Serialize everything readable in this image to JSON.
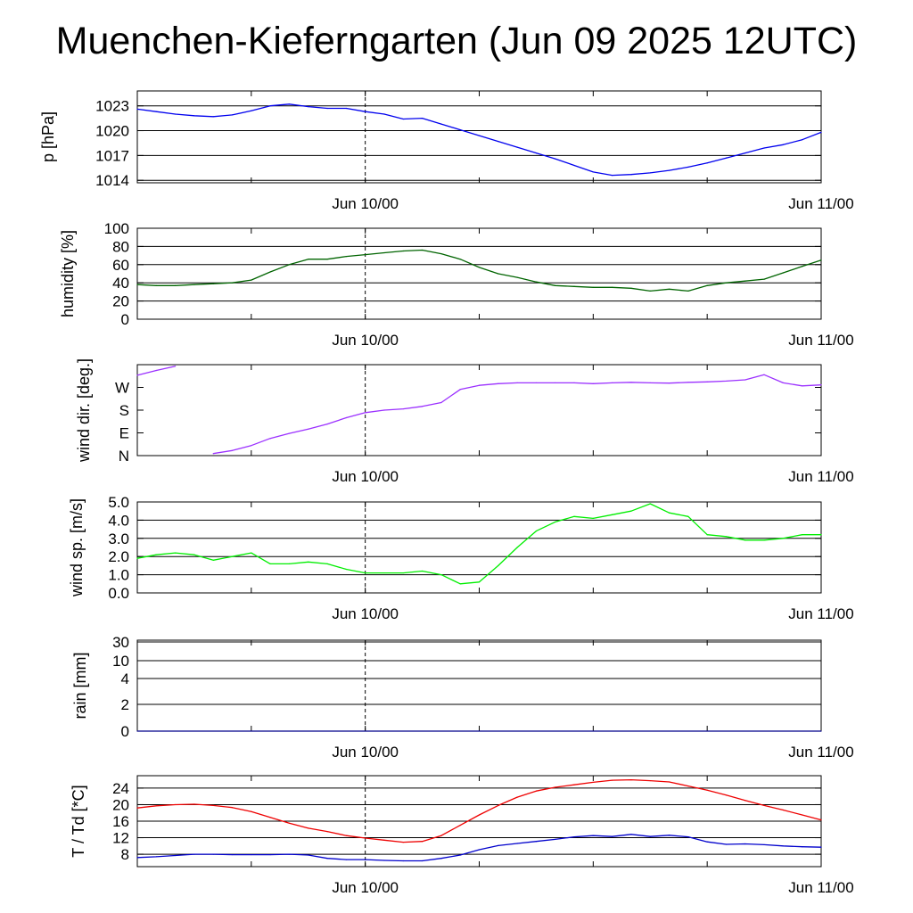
{
  "title": "Muenchen-Kieferngarten (Jun 09 2025 12UTC)",
  "chart_data": [
    {
      "type": "line",
      "ylabel": "p [hPa]",
      "x_tick_labels": [
        "Jun 10/00",
        "Jun 11/00"
      ],
      "x": [
        0,
        1,
        2,
        3,
        4,
        5,
        6,
        7,
        8,
        9,
        10,
        11,
        12,
        13,
        14,
        15,
        16,
        17,
        18,
        19,
        20,
        21,
        22,
        23,
        24,
        25,
        26,
        27,
        28,
        29,
        30,
        31,
        32,
        33,
        34,
        35,
        36
      ],
      "ylim": [
        1013.7,
        1024.8
      ],
      "yticks": [
        1014,
        1017,
        1020,
        1023
      ],
      "grid": true,
      "series": [
        {
          "color": "#0000ee",
          "values": [
            1022.6,
            1022.3,
            1022.0,
            1021.8,
            1021.7,
            1021.9,
            1022.4,
            1023.0,
            1023.2,
            1022.9,
            1022.7,
            1022.7,
            1022.3,
            1022.0,
            1021.4,
            1021.5,
            1020.8,
            1020.1,
            1019.4,
            1018.7,
            1018.0,
            1017.3,
            1016.6,
            1015.8,
            1015.0,
            1014.6,
            1014.7,
            1014.9,
            1015.2,
            1015.6,
            1016.1,
            1016.7,
            1017.3,
            1017.9,
            1018.3,
            1018.9,
            1019.8
          ]
        }
      ]
    },
    {
      "type": "line",
      "ylabel": "humidity [%]",
      "x_tick_labels": [
        "Jun 10/00",
        "Jun 11/00"
      ],
      "x": [
        0,
        1,
        2,
        3,
        4,
        5,
        6,
        7,
        8,
        9,
        10,
        11,
        12,
        13,
        14,
        15,
        16,
        17,
        18,
        19,
        20,
        21,
        22,
        23,
        24,
        25,
        26,
        27,
        28,
        29,
        30,
        31,
        32,
        33,
        34,
        35,
        36
      ],
      "ylim": [
        0,
        100
      ],
      "yticks": [
        0,
        20,
        40,
        60,
        80,
        100
      ],
      "grid": true,
      "series": [
        {
          "color": "#006400",
          "values": [
            38,
            37,
            37,
            38,
            39,
            40,
            43,
            52,
            60,
            66,
            66,
            69,
            71,
            73,
            75,
            76,
            72,
            66,
            57,
            50,
            46,
            41,
            37,
            36,
            35,
            35,
            34,
            31,
            33,
            31,
            37,
            40,
            42,
            44,
            51,
            58,
            65
          ]
        }
      ]
    },
    {
      "type": "line",
      "ylabel": "wind dir. [deg.]",
      "x_tick_labels": [
        "Jun 10/00",
        "Jun 11/00"
      ],
      "x": [
        0,
        1,
        2,
        3,
        4,
        5,
        6,
        7,
        8,
        9,
        10,
        11,
        12,
        13,
        14,
        15,
        16,
        17,
        18,
        19,
        20,
        21,
        22,
        23,
        24,
        25,
        26,
        27,
        28,
        29,
        30,
        31,
        32,
        33,
        34,
        35,
        36
      ],
      "ylim": [
        0,
        360
      ],
      "yticks": [
        0,
        90,
        180,
        270
      ],
      "ytick_labels": [
        "N",
        "E",
        "S",
        "W"
      ],
      "grid": false,
      "series": [
        {
          "color": "#9b30ff",
          "values": [
            318,
            337,
            354,
            null,
            8,
            20,
            40,
            68,
            88,
            105,
            125,
            150,
            170,
            180,
            185,
            195,
            210,
            262,
            278,
            285,
            288,
            288,
            288,
            288,
            285,
            288,
            290,
            288,
            287,
            290,
            292,
            295,
            300,
            320,
            288,
            276,
            280
          ]
        }
      ]
    },
    {
      "type": "line",
      "ylabel": "wind sp. [m/s]",
      "x_tick_labels": [
        "Jun 10/00",
        "Jun 11/00"
      ],
      "x": [
        0,
        1,
        2,
        3,
        4,
        5,
        6,
        7,
        8,
        9,
        10,
        11,
        12,
        13,
        14,
        15,
        16,
        17,
        18,
        19,
        20,
        21,
        22,
        23,
        24,
        25,
        26,
        27,
        28,
        29,
        30,
        31,
        32,
        33,
        34,
        35,
        36
      ],
      "ylim": [
        0,
        5
      ],
      "yticks": [
        0.0,
        1.0,
        2.0,
        3.0,
        4.0,
        5.0
      ],
      "grid": true,
      "series": [
        {
          "color": "#00ee00",
          "values": [
            1.9,
            2.1,
            2.2,
            2.1,
            1.8,
            2.0,
            2.2,
            1.6,
            1.6,
            1.7,
            1.6,
            1.3,
            1.1,
            1.1,
            1.1,
            1.2,
            1.0,
            0.5,
            0.6,
            1.5,
            2.5,
            3.4,
            3.9,
            4.2,
            4.1,
            4.3,
            4.5,
            4.9,
            4.4,
            4.2,
            3.2,
            3.1,
            2.9,
            2.9,
            3.0,
            3.2,
            3.2
          ]
        }
      ]
    },
    {
      "type": "line",
      "ylabel": "rain [mm]",
      "x_tick_labels": [
        "Jun 10/00",
        "Jun 11/00"
      ],
      "x": [
        0,
        36
      ],
      "ylim": [
        0,
        30
      ],
      "yticks": [
        0,
        2,
        4,
        10,
        30
      ],
      "grid": true,
      "series": [
        {
          "color": "#00008b",
          "values": [
            0,
            0
          ]
        }
      ]
    },
    {
      "type": "line",
      "ylabel": "T / Td [*C]",
      "x_tick_labels": [
        "Jun 10/00",
        "Jun 11/00"
      ],
      "x": [
        0,
        1,
        2,
        3,
        4,
        5,
        6,
        7,
        8,
        9,
        10,
        11,
        12,
        13,
        14,
        15,
        16,
        17,
        18,
        19,
        20,
        21,
        22,
        23,
        24,
        25,
        26,
        27,
        28,
        29,
        30,
        31,
        32,
        33,
        34,
        35,
        36
      ],
      "ylim": [
        5,
        27
      ],
      "yticks": [
        8,
        12,
        16,
        20,
        24
      ],
      "grid": true,
      "series": [
        {
          "color": "#ee0000",
          "values": [
            19.2,
            19.7,
            20.0,
            20.1,
            19.8,
            19.3,
            18.3,
            16.9,
            15.5,
            14.3,
            13.5,
            12.5,
            11.9,
            11.4,
            10.9,
            11.1,
            12.5,
            15.0,
            17.5,
            19.8,
            21.8,
            23.3,
            24.2,
            24.8,
            25.4,
            25.9,
            26.0,
            25.8,
            25.5,
            24.5,
            23.5,
            22.3,
            21.0,
            19.8,
            18.7,
            17.5,
            16.3
          ]
        },
        {
          "color": "#0000cc",
          "values": [
            7.2,
            7.4,
            7.7,
            8.0,
            8.0,
            7.9,
            7.9,
            7.9,
            8.0,
            7.8,
            7.0,
            6.7,
            6.7,
            6.5,
            6.4,
            6.4,
            7.0,
            7.8,
            9.1,
            10.1,
            10.6,
            11.1,
            11.6,
            12.2,
            12.5,
            12.3,
            12.8,
            12.3,
            12.6,
            12.2,
            11.0,
            10.4,
            10.5,
            10.3,
            10.0,
            9.8,
            9.7
          ]
        }
      ]
    }
  ]
}
